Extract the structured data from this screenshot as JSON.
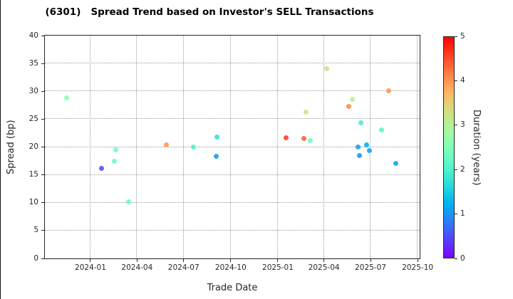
{
  "chart_data": {
    "type": "scatter",
    "title": "(6301)   Spread Trend based on Investor's SELL Transactions",
    "xlabel": "Trade Date",
    "ylabel": "Spread (bp)",
    "grid": true,
    "legend_position": "none",
    "x_domain": [
      "2023-10-04",
      "2025-10-05"
    ],
    "ylim": [
      0,
      40
    ],
    "y_ticks": [
      0,
      5,
      10,
      15,
      20,
      25,
      30,
      35,
      40
    ],
    "x_ticks": [
      "2024-01",
      "2024-04",
      "2024-07",
      "2024-10",
      "2025-01",
      "2025-04",
      "2025-07",
      "2025-10"
    ],
    "colorbar": {
      "label": "Duration (years)",
      "min": 0,
      "max": 5,
      "ticks": [
        0,
        1,
        2,
        3,
        4,
        5
      ],
      "colormap": "rainbow",
      "color_min_hex": "#8000ff",
      "color_max_hex": "#ff0000"
    },
    "points": [
      {
        "date": "2023-11-16",
        "spread_bp": 28.8,
        "duration_years": 2.6
      },
      {
        "date": "2024-01-22",
        "spread_bp": 16.2,
        "duration_years": 0.5
      },
      {
        "date": "2024-02-16",
        "spread_bp": 17.4,
        "duration_years": 2.3
      },
      {
        "date": "2024-02-19",
        "spread_bp": 19.5,
        "duration_years": 2.3
      },
      {
        "date": "2024-03-16",
        "spread_bp": 10.2,
        "duration_years": 2.3
      },
      {
        "date": "2024-05-28",
        "spread_bp": 20.4,
        "duration_years": 4.0
      },
      {
        "date": "2024-07-20",
        "spread_bp": 20.0,
        "duration_years": 2.0
      },
      {
        "date": "2024-09-03",
        "spread_bp": 18.3,
        "duration_years": 1.0
      },
      {
        "date": "2024-09-04",
        "spread_bp": 21.8,
        "duration_years": 1.7
      },
      {
        "date": "2025-01-17",
        "spread_bp": 21.7,
        "duration_years": 4.6
      },
      {
        "date": "2025-02-21",
        "spread_bp": 21.5,
        "duration_years": 4.4
      },
      {
        "date": "2025-02-25",
        "spread_bp": 26.2,
        "duration_years": 3.2
      },
      {
        "date": "2025-03-05",
        "spread_bp": 21.2,
        "duration_years": 2.3
      },
      {
        "date": "2025-04-06",
        "spread_bp": 34.0,
        "duration_years": 3.3
      },
      {
        "date": "2025-05-20",
        "spread_bp": 27.3,
        "duration_years": 4.1
      },
      {
        "date": "2025-05-26",
        "spread_bp": 28.5,
        "duration_years": 3.1
      },
      {
        "date": "2025-06-06",
        "spread_bp": 20.0,
        "duration_years": 1.1
      },
      {
        "date": "2025-06-10",
        "spread_bp": 18.5,
        "duration_years": 1.0
      },
      {
        "date": "2025-06-12",
        "spread_bp": 24.4,
        "duration_years": 1.9
      },
      {
        "date": "2025-06-23",
        "spread_bp": 20.4,
        "duration_years": 1.2
      },
      {
        "date": "2025-06-29",
        "spread_bp": 19.3,
        "duration_years": 1.1
      },
      {
        "date": "2025-07-22",
        "spread_bp": 23.1,
        "duration_years": 2.1
      },
      {
        "date": "2025-08-05",
        "spread_bp": 30.1,
        "duration_years": 4.0
      },
      {
        "date": "2025-08-19",
        "spread_bp": 17.0,
        "duration_years": 1.1
      }
    ]
  }
}
